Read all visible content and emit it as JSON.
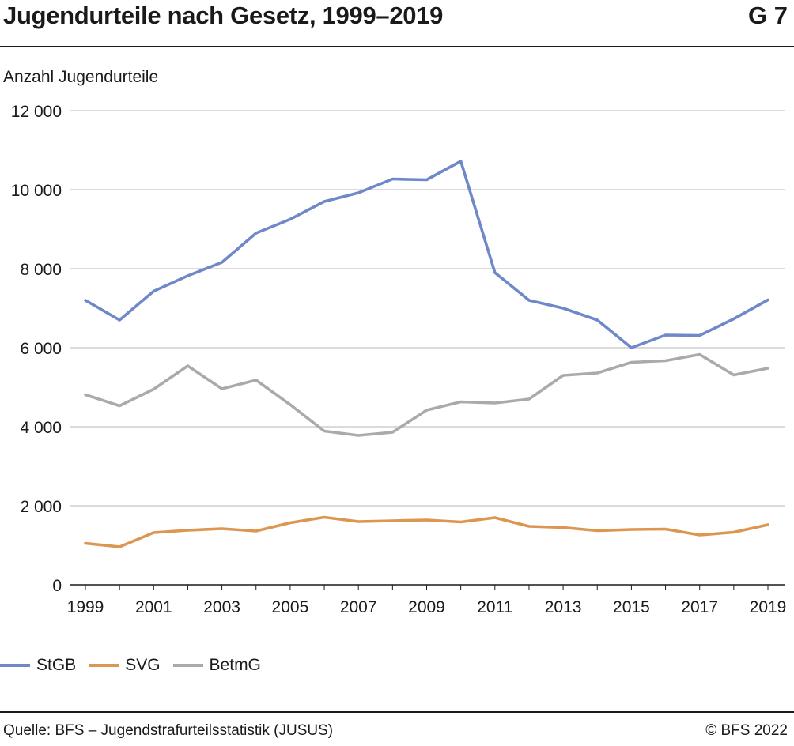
{
  "header": {
    "title": "Jugendurteile nach Gesetz, 1999–2019",
    "figure_number": "G 7"
  },
  "footer": {
    "source": "Quelle: BFS – Jugendstrafurteilsstatistik (JUSUS)",
    "copyright": "© BFS 2022"
  },
  "colors": {
    "StGB": "#6f88c9",
    "SVG": "#dc9650",
    "BetmG": "#aaaaaa",
    "grid": "#cfcfcf",
    "axis": "#1a1a1a"
  },
  "chart_data": {
    "type": "line",
    "title": "Jugendurteile nach Gesetz, 1999–2019",
    "ylabel": "Anzahl Jugendurteile",
    "xlabel": "",
    "ylim": [
      0,
      12000
    ],
    "yticks": [
      0,
      2000,
      4000,
      6000,
      8000,
      10000,
      12000
    ],
    "ytick_labels": [
      "0",
      "2 000",
      "4 000",
      "6 000",
      "8 000",
      "10 000",
      "12 000"
    ],
    "x": [
      1999,
      2000,
      2001,
      2002,
      2003,
      2004,
      2005,
      2006,
      2007,
      2008,
      2009,
      2010,
      2011,
      2012,
      2013,
      2014,
      2015,
      2016,
      2017,
      2018,
      2019
    ],
    "xtick_labels": [
      "1999",
      "2001",
      "2003",
      "2005",
      "2007",
      "2009",
      "2011",
      "2013",
      "2015",
      "2017",
      "2019"
    ],
    "grid": true,
    "legend_position": "bottom-left",
    "series": [
      {
        "name": "StGB",
        "values": [
          7200,
          6700,
          7430,
          7820,
          8160,
          8900,
          9250,
          9700,
          9920,
          10270,
          10250,
          10720,
          7900,
          7200,
          7000,
          6700,
          6000,
          6320,
          6310,
          6730,
          7210
        ]
      },
      {
        "name": "SVG",
        "values": [
          1050,
          960,
          1320,
          1380,
          1420,
          1360,
          1570,
          1710,
          1600,
          1620,
          1640,
          1590,
          1700,
          1480,
          1450,
          1370,
          1400,
          1410,
          1260,
          1330,
          1520
        ]
      },
      {
        "name": "BetmG",
        "values": [
          4810,
          4530,
          4950,
          5540,
          4960,
          5180,
          4560,
          3890,
          3780,
          3860,
          4420,
          4630,
          4600,
          4700,
          5300,
          5360,
          5630,
          5670,
          5830,
          5310,
          5480
        ]
      }
    ]
  }
}
